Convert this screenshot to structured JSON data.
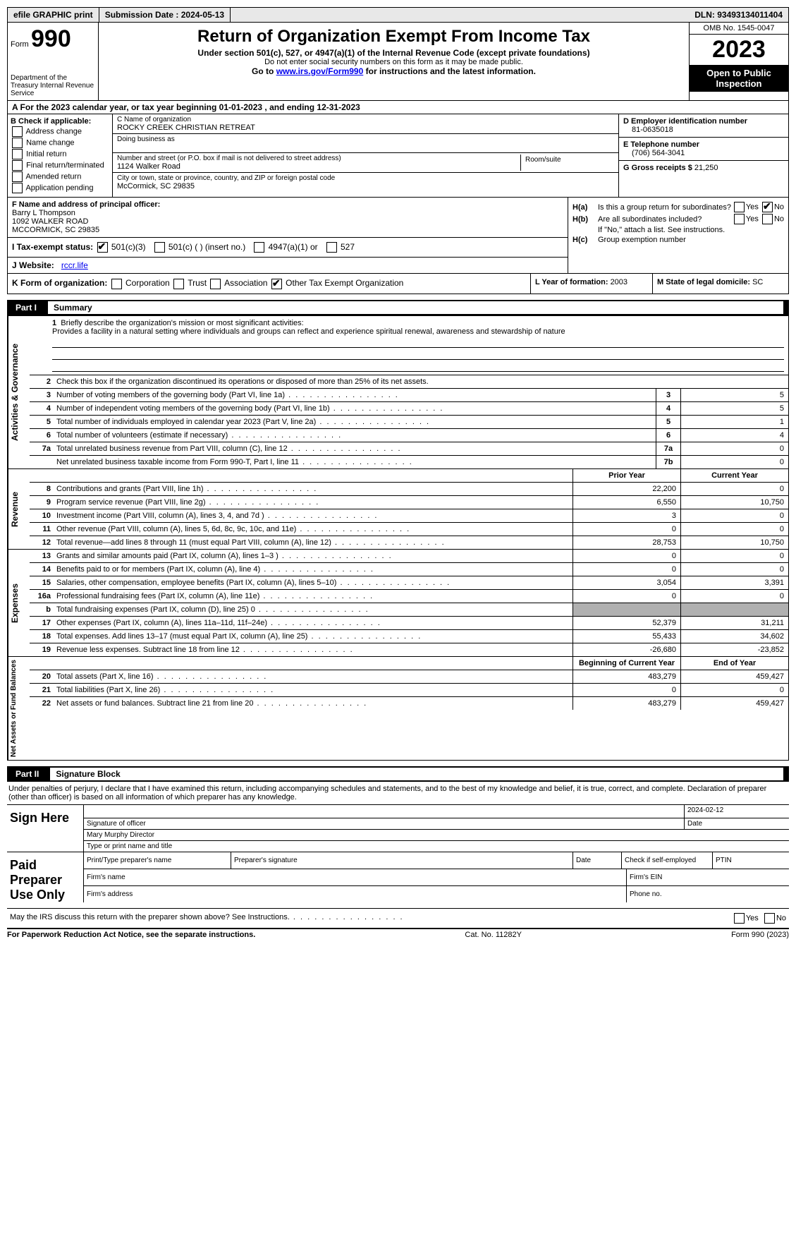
{
  "top": {
    "efile": "efile GRAPHIC print",
    "submission_label": "Submission Date : ",
    "submission_date": "2024-05-13",
    "dln_label": "DLN: ",
    "dln": "93493134011404"
  },
  "header": {
    "form_label": "Form",
    "form_number": "990",
    "dept": "Department of the Treasury\nInternal Revenue Service",
    "title": "Return of Organization Exempt From Income Tax",
    "sub1": "Under section 501(c), 527, or 4947(a)(1) of the Internal Revenue Code (except private foundations)",
    "sub2": "Do not enter social security numbers on this form as it may be made public.",
    "sub3_pre": "Go to ",
    "sub3_link": "www.irs.gov/Form990",
    "sub3_post": " for instructions and the latest information.",
    "omb": "OMB No. 1545-0047",
    "year": "2023",
    "inspection": "Open to Public Inspection"
  },
  "row_a": {
    "text_pre": "A  For the 2023 calendar year, or tax year beginning ",
    "begin": "01-01-2023",
    "mid": "   , and ending ",
    "end": "12-31-2023"
  },
  "box_b": {
    "header": "B Check if applicable:",
    "opts": [
      "Address change",
      "Name change",
      "Initial return",
      "Final return/terminated",
      "Amended return",
      "Application pending"
    ]
  },
  "box_c": {
    "name_label": "C Name of organization",
    "name": "ROCKY CREEK CHRISTIAN RETREAT",
    "dba_label": "Doing business as",
    "street_label": "Number and street (or P.O. box if mail is not delivered to street address)",
    "street": "1124 Walker Road",
    "room_label": "Room/suite",
    "city_label": "City or town, state or province, country, and ZIP or foreign postal code",
    "city": "McCormick, SC  29835"
  },
  "box_d": {
    "ein_label": "D Employer identification number",
    "ein": "81-0635018",
    "phone_label": "E Telephone number",
    "phone": "(706) 564-3041",
    "gross_label": "G Gross receipts $ ",
    "gross": "21,250"
  },
  "box_f": {
    "label": "F  Name and address of principal officer:",
    "name": "Barry L Thompson",
    "addr1": "1092 WALKER ROAD",
    "addr2": "MCCORMICK, SC  29835"
  },
  "box_h": {
    "ha_label": "H(a)",
    "ha_text": "Is this a group return for subordinates?",
    "hb_label": "H(b)",
    "hb_text": "Are all subordinates included?",
    "hb_note": "If \"No,\" attach a list. See instructions.",
    "hc_label": "H(c)",
    "hc_text": "Group exemption number",
    "yes": "Yes",
    "no": "No"
  },
  "row_i": {
    "label": "I   Tax-exempt status:",
    "opt1": "501(c)(3)",
    "opt2": "501(c) (  ) (insert no.)",
    "opt3": "4947(a)(1) or",
    "opt4": "527"
  },
  "row_j": {
    "label": "J   Website:",
    "value": "rccr.life"
  },
  "row_k": {
    "label": "K Form of organization:",
    "opts": [
      "Corporation",
      "Trust",
      "Association",
      "Other Tax Exempt Organization"
    ],
    "checked_idx": 3
  },
  "row_l": {
    "label": "L Year of formation: ",
    "value": "2003"
  },
  "row_m": {
    "label": "M State of legal domicile: ",
    "value": "SC"
  },
  "part1": {
    "partno": "Part I",
    "title": "Summary",
    "tab_gov": "Activities & Governance",
    "tab_rev": "Revenue",
    "tab_exp": "Expenses",
    "tab_net": "Net Assets or Fund Balances",
    "line1_label": "1",
    "line1_text": "Briefly describe the organization's mission or most significant activities:",
    "mission": "Provides a facility in a natural setting where individuals and groups can reflect and experience spiritual renewal, awareness and stewardship of nature",
    "line2_label": "2",
    "line2_text": "Check this box       if the organization discontinued its operations or disposed of more than 25% of its net assets.",
    "gov_lines": [
      {
        "n": "3",
        "d": "Number of voting members of the governing body (Part VI, line 1a)",
        "box": "3",
        "v": "5"
      },
      {
        "n": "4",
        "d": "Number of independent voting members of the governing body (Part VI, line 1b)",
        "box": "4",
        "v": "5"
      },
      {
        "n": "5",
        "d": "Total number of individuals employed in calendar year 2023 (Part V, line 2a)",
        "box": "5",
        "v": "1"
      },
      {
        "n": "6",
        "d": "Total number of volunteers (estimate if necessary)",
        "box": "6",
        "v": "4"
      },
      {
        "n": "7a",
        "d": "Total unrelated business revenue from Part VIII, column (C), line 12",
        "box": "7a",
        "v": "0"
      },
      {
        "n": "",
        "d": "Net unrelated business taxable income from Form 990-T, Part I, line 11",
        "box": "7b",
        "v": "0"
      }
    ],
    "rev_header": {
      "py": "Prior Year",
      "cy": "Current Year"
    },
    "rev_lines": [
      {
        "n": "8",
        "d": "Contributions and grants (Part VIII, line 1h)",
        "py": "22,200",
        "cy": "0"
      },
      {
        "n": "9",
        "d": "Program service revenue (Part VIII, line 2g)",
        "py": "6,550",
        "cy": "10,750"
      },
      {
        "n": "10",
        "d": "Investment income (Part VIII, column (A), lines 3, 4, and 7d )",
        "py": "3",
        "cy": "0"
      },
      {
        "n": "11",
        "d": "Other revenue (Part VIII, column (A), lines 5, 6d, 8c, 9c, 10c, and 11e)",
        "py": "0",
        "cy": "0"
      },
      {
        "n": "12",
        "d": "Total revenue—add lines 8 through 11 (must equal Part VIII, column (A), line 12)",
        "py": "28,753",
        "cy": "10,750"
      }
    ],
    "exp_lines": [
      {
        "n": "13",
        "d": "Grants and similar amounts paid (Part IX, column (A), lines 1–3 )",
        "py": "0",
        "cy": "0"
      },
      {
        "n": "14",
        "d": "Benefits paid to or for members (Part IX, column (A), line 4)",
        "py": "0",
        "cy": "0"
      },
      {
        "n": "15",
        "d": "Salaries, other compensation, employee benefits (Part IX, column (A), lines 5–10)",
        "py": "3,054",
        "cy": "3,391"
      },
      {
        "n": "16a",
        "d": "Professional fundraising fees (Part IX, column (A), line 11e)",
        "py": "0",
        "cy": "0"
      },
      {
        "n": "b",
        "d": "Total fundraising expenses (Part IX, column (D), line 25) 0",
        "py": "shaded",
        "cy": "shaded"
      },
      {
        "n": "17",
        "d": "Other expenses (Part IX, column (A), lines 11a–11d, 11f–24e)",
        "py": "52,379",
        "cy": "31,211"
      },
      {
        "n": "18",
        "d": "Total expenses. Add lines 13–17 (must equal Part IX, column (A), line 25)",
        "py": "55,433",
        "cy": "34,602"
      },
      {
        "n": "19",
        "d": "Revenue less expenses. Subtract line 18 from line 12",
        "py": "-26,680",
        "cy": "-23,852"
      }
    ],
    "net_header": {
      "py": "Beginning of Current Year",
      "cy": "End of Year"
    },
    "net_lines": [
      {
        "n": "20",
        "d": "Total assets (Part X, line 16)",
        "py": "483,279",
        "cy": "459,427"
      },
      {
        "n": "21",
        "d": "Total liabilities (Part X, line 26)",
        "py": "0",
        "cy": "0"
      },
      {
        "n": "22",
        "d": "Net assets or fund balances. Subtract line 21 from line 20",
        "py": "483,279",
        "cy": "459,427"
      }
    ]
  },
  "part2": {
    "partno": "Part II",
    "title": "Signature Block",
    "intro": "Under penalties of perjury, I declare that I have examined this return, including accompanying schedules and statements, and to the best of my knowledge and belief, it is true, correct, and complete. Declaration of preparer (other than officer) is based on all information of which preparer has any knowledge.",
    "sign_here": "Sign Here",
    "sig_date": "2024-02-12",
    "sig_officer_label": "Signature of officer",
    "sig_date_label": "Date",
    "sig_name": "Mary Murphy  Director",
    "sig_name_label": "Type or print name and title",
    "paid_label": "Paid Preparer Use Only",
    "p_name": "Print/Type preparer's name",
    "p_sig": "Preparer's signature",
    "p_date": "Date",
    "p_check": "Check        if self-employed",
    "p_ptin": "PTIN",
    "p_firm": "Firm's name",
    "p_ein": "Firm's EIN",
    "p_addr": "Firm's address",
    "p_phone": "Phone no.",
    "discuss": "May the IRS discuss this return with the preparer shown above? See Instructions.",
    "yes": "Yes",
    "no": "No"
  },
  "footer": {
    "left": "For Paperwork Reduction Act Notice, see the separate instructions.",
    "center": "Cat. No. 11282Y",
    "right": "Form 990 (2023)"
  }
}
